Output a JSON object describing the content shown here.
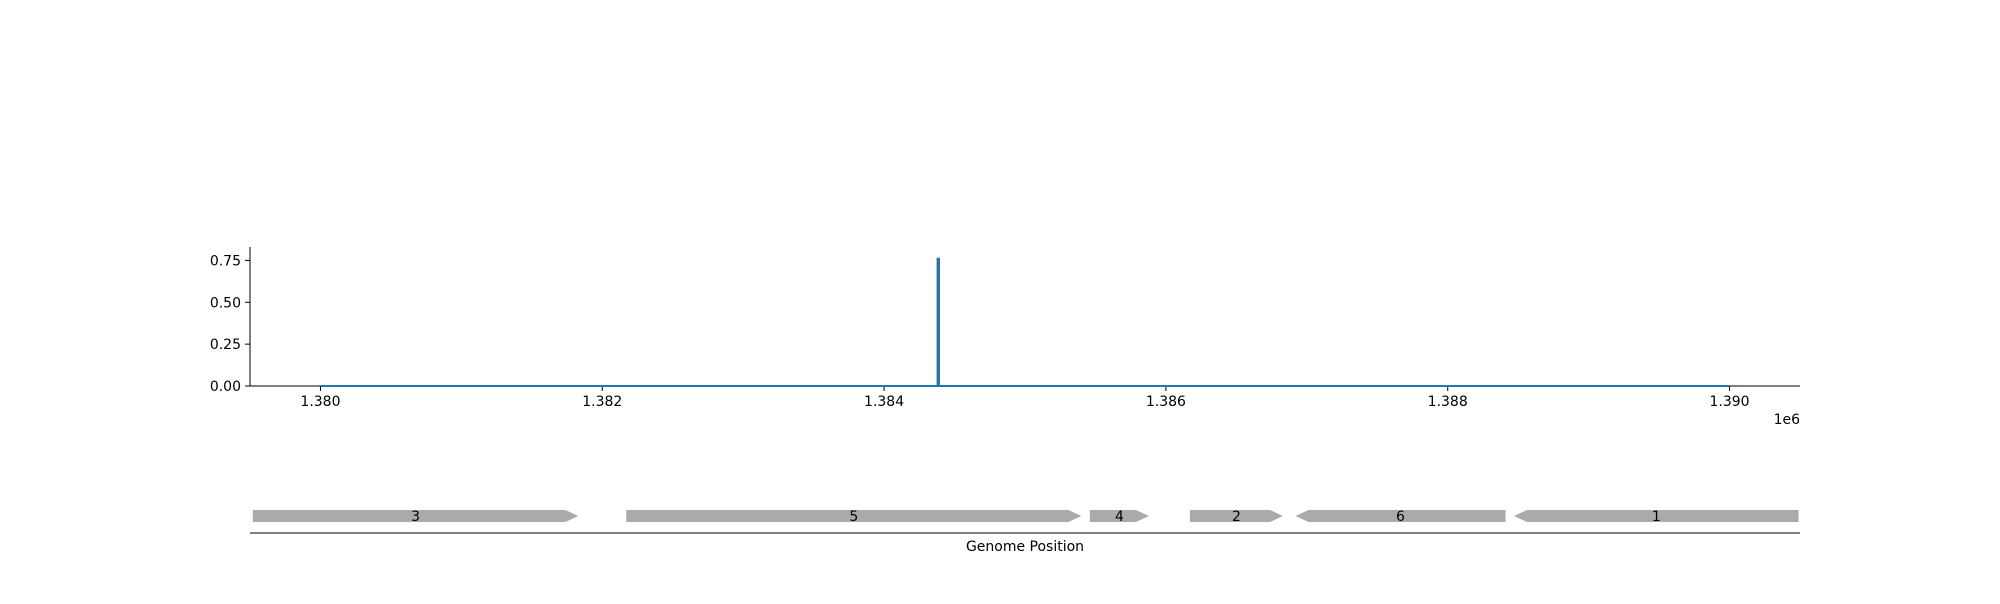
{
  "chart_data": [
    {
      "type": "line",
      "x_offset_label": "1e6",
      "xlim": [
        1379500,
        1390500
      ],
      "ylim": [
        0,
        0.83
      ],
      "x_ticks": [
        1380000,
        1382000,
        1384000,
        1386000,
        1388000,
        1390000
      ],
      "x_tick_labels": [
        "1.380",
        "1.382",
        "1.384",
        "1.386",
        "1.388",
        "1.390"
      ],
      "y_ticks": [
        0,
        0.25,
        0.5,
        0.75
      ],
      "y_tick_labels": [
        "0.00",
        "0.25",
        "0.50",
        "0.75"
      ],
      "series": [
        {
          "color": "#1f77b4",
          "points": [
            [
              1380000,
              0
            ],
            [
              1384380,
              0
            ],
            [
              1384380,
              0.76
            ],
            [
              1384390,
              0.76
            ],
            [
              1384390,
              0
            ],
            [
              1390000,
              0
            ]
          ]
        }
      ]
    },
    {
      "type": "gene_track",
      "xlabel": "Genome Position",
      "xlim": [
        1379500,
        1390500
      ],
      "gene_color": "#aaaaaa",
      "genes": [
        {
          "label": "3",
          "start": 1379520,
          "end": 1381830,
          "strand": "+"
        },
        {
          "label": "5",
          "start": 1382170,
          "end": 1385400,
          "strand": "+"
        },
        {
          "label": "4",
          "start": 1385460,
          "end": 1385880,
          "strand": "+"
        },
        {
          "label": "2",
          "start": 1386170,
          "end": 1386830,
          "strand": "+"
        },
        {
          "label": "6",
          "start": 1386920,
          "end": 1388410,
          "strand": "-"
        },
        {
          "label": "1",
          "start": 1388470,
          "end": 1390490,
          "strand": "-"
        }
      ]
    }
  ]
}
